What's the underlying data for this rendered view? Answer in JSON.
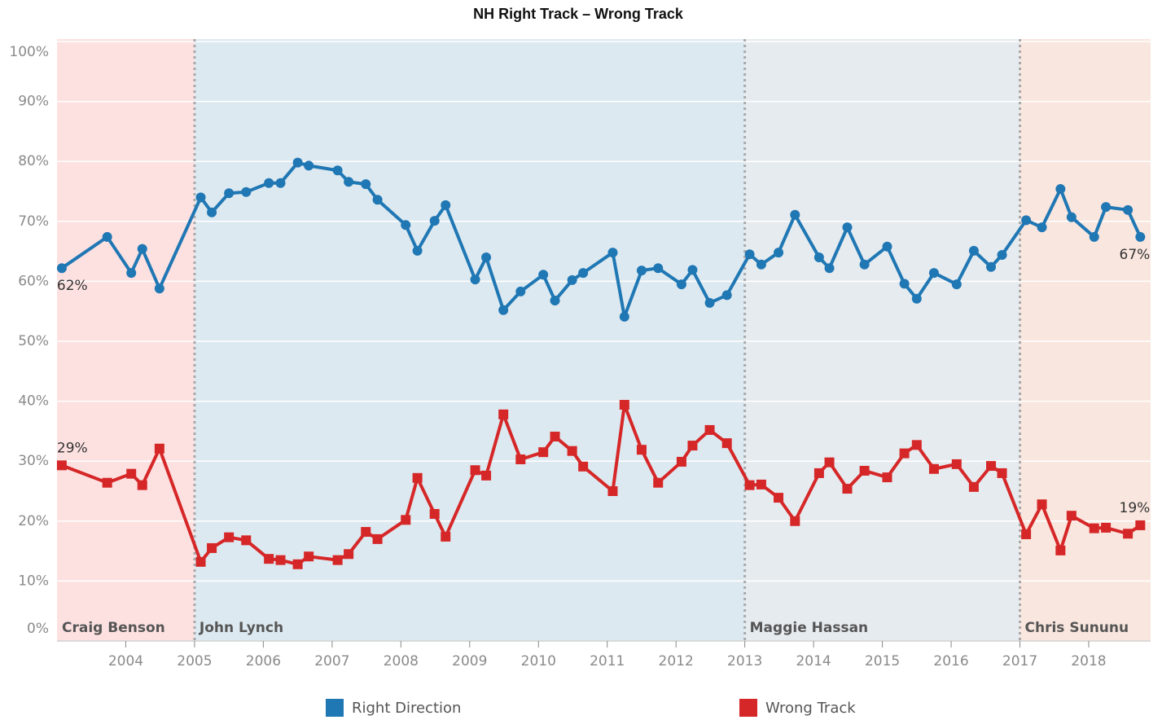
{
  "chart_data": {
    "type": "line",
    "title": "NH Right Track – Wrong Track",
    "x": [
      2003.07,
      2003.73,
      2004.08,
      2004.24,
      2004.49,
      2005.09,
      2005.25,
      2005.5,
      2005.75,
      2006.08,
      2006.25,
      2006.5,
      2006.66,
      2007.08,
      2007.24,
      2007.49,
      2007.66,
      2008.07,
      2008.24,
      2008.49,
      2008.65,
      2009.08,
      2009.24,
      2009.49,
      2009.74,
      2010.07,
      2010.24,
      2010.49,
      2010.65,
      2011.08,
      2011.25,
      2011.5,
      2011.74,
      2012.08,
      2012.24,
      2012.49,
      2012.74,
      2013.07,
      2013.24,
      2013.49,
      2013.73,
      2014.08,
      2014.23,
      2014.49,
      2014.74,
      2015.07,
      2015.32,
      2015.5,
      2015.75,
      2016.08,
      2016.33,
      2016.58,
      2016.74,
      2017.09,
      2017.32,
      2017.59,
      2017.75,
      2018.08,
      2018.25,
      2018.57,
      2018.75
    ],
    "series": [
      {
        "name": "Right Direction",
        "color": "#1f77b4",
        "marker": "circle",
        "values": [
          62.2,
          67.4,
          61.4,
          65.4,
          58.8,
          74.0,
          71.5,
          74.7,
          74.9,
          76.4,
          76.4,
          79.8,
          79.3,
          78.5,
          76.6,
          76.2,
          73.6,
          69.4,
          65.1,
          70.1,
          72.7,
          60.3,
          64.0,
          55.2,
          58.3,
          61.1,
          56.8,
          60.2,
          61.4,
          64.8,
          54.1,
          61.8,
          62.2,
          59.5,
          61.9,
          56.4,
          57.7,
          64.5,
          62.8,
          64.8,
          71.1,
          64.0,
          62.2,
          69.0,
          62.8,
          65.8,
          59.6,
          57.1,
          61.4,
          59.5,
          65.1,
          62.4,
          64.4,
          70.2,
          69.0,
          75.4,
          70.7,
          67.4,
          72.4,
          71.9,
          67.4
        ],
        "value_labels": [
          "62%",
          null,
          null,
          null,
          null,
          null,
          null,
          null,
          null,
          null,
          null,
          null,
          null,
          null,
          null,
          null,
          null,
          null,
          null,
          null,
          null,
          null,
          null,
          null,
          null,
          null,
          null,
          null,
          null,
          null,
          null,
          null,
          null,
          null,
          null,
          null,
          null,
          null,
          null,
          null,
          null,
          null,
          null,
          null,
          null,
          null,
          null,
          null,
          null,
          null,
          null,
          null,
          null,
          null,
          null,
          null,
          null,
          null,
          null,
          null,
          "67%"
        ]
      },
      {
        "name": "Wrong Track",
        "color": "#d62728",
        "marker": "square",
        "values": [
          29.3,
          26.4,
          27.9,
          26.0,
          32.1,
          13.2,
          15.5,
          17.3,
          16.8,
          13.7,
          13.5,
          12.8,
          14.1,
          13.5,
          14.5,
          18.2,
          17.0,
          20.2,
          27.2,
          21.2,
          17.4,
          28.5,
          27.6,
          37.8,
          30.3,
          31.5,
          34.1,
          31.7,
          29.1,
          25.0,
          39.4,
          31.9,
          26.4,
          29.9,
          32.6,
          35.2,
          33.0,
          26.0,
          26.1,
          23.9,
          20.0,
          28.0,
          29.8,
          25.4,
          28.4,
          27.3,
          31.3,
          32.7,
          28.7,
          29.5,
          25.7,
          29.2,
          28.0,
          17.8,
          22.8,
          15.1,
          20.9,
          18.8,
          18.9,
          17.9,
          19.3
        ],
        "value_labels": [
          "29%",
          null,
          null,
          null,
          null,
          null,
          null,
          null,
          null,
          null,
          null,
          null,
          null,
          null,
          null,
          null,
          null,
          null,
          null,
          null,
          null,
          null,
          null,
          null,
          null,
          null,
          null,
          null,
          null,
          null,
          null,
          null,
          null,
          null,
          null,
          null,
          null,
          null,
          null,
          null,
          null,
          null,
          null,
          null,
          null,
          null,
          null,
          null,
          null,
          null,
          null,
          null,
          null,
          null,
          null,
          null,
          null,
          null,
          null,
          null,
          "19%"
        ]
      }
    ],
    "periods": [
      {
        "name": "Craig Benson",
        "start": 2003,
        "end": 2005,
        "color": "#fde1e1"
      },
      {
        "name": "John Lynch",
        "start": 2005,
        "end": 2013,
        "color": "#dde9f0"
      },
      {
        "name": "Maggie Hassan",
        "start": 2013,
        "end": 2017,
        "color": "#e6ebef"
      },
      {
        "name": "Chris Sununu",
        "start": 2017,
        "end": 2018.9,
        "color": "#f9e6de"
      }
    ],
    "xlim": [
      2003,
      2018.9
    ],
    "xticks": [
      2004,
      2005,
      2006,
      2007,
      2008,
      2009,
      2010,
      2011,
      2012,
      2013,
      2014,
      2015,
      2016,
      2017,
      2018
    ],
    "ylim": [
      0,
      100
    ],
    "yticks": [
      {
        "value": 0,
        "label": "0%"
      },
      {
        "value": 10,
        "label": "10%"
      },
      {
        "value": 20,
        "label": "20%"
      },
      {
        "value": 30,
        "label": "30%"
      },
      {
        "value": 40,
        "label": "40%"
      },
      {
        "value": 50,
        "label": "50%"
      },
      {
        "value": 60,
        "label": "60%"
      },
      {
        "value": 70,
        "label": "70%"
      },
      {
        "value": 80,
        "label": "80%"
      },
      {
        "value": 90,
        "label": "90%"
      },
      {
        "value": 100,
        "label": "100%"
      }
    ],
    "grid": true,
    "legend": "bottom"
  }
}
